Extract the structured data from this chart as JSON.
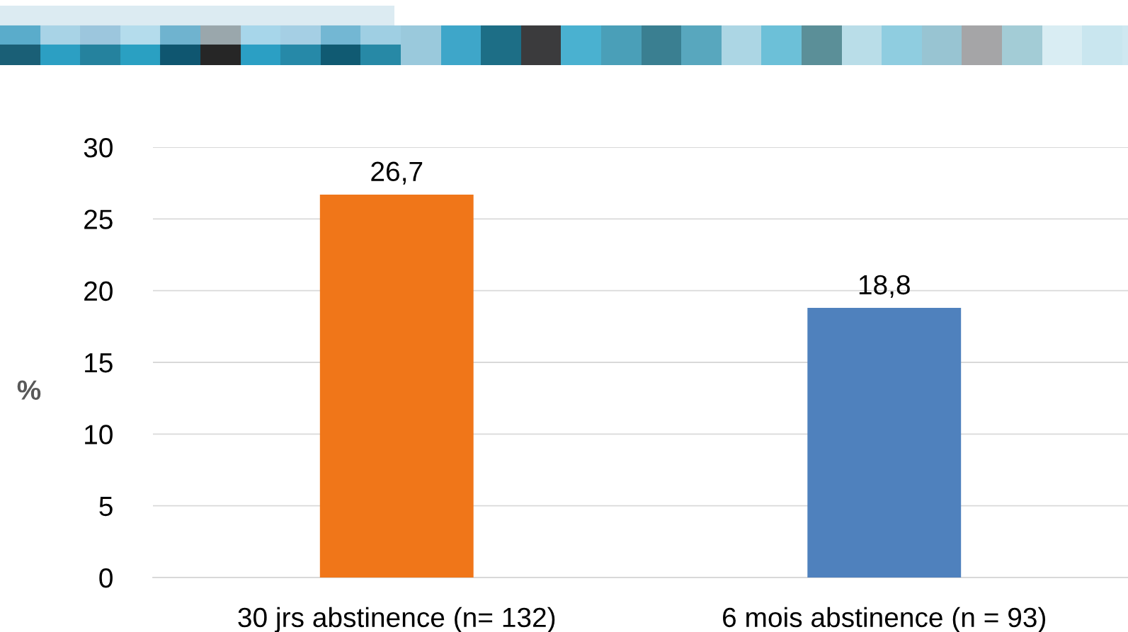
{
  "chart_data": {
    "type": "bar",
    "ylabel": "%",
    "categories": [
      "30 jrs abstinence (n= 132)",
      "6 mois abstinence (n = 93)"
    ],
    "values": [
      26.7,
      18.8
    ],
    "colors": [
      "#f07619",
      "#4f81bd"
    ],
    "value_labels": [
      "26,7",
      "18,8"
    ],
    "ylim": [
      0,
      30
    ],
    "yticks": [
      0,
      5,
      10,
      15,
      20,
      25,
      30
    ],
    "grid": "y",
    "legend": false
  }
}
